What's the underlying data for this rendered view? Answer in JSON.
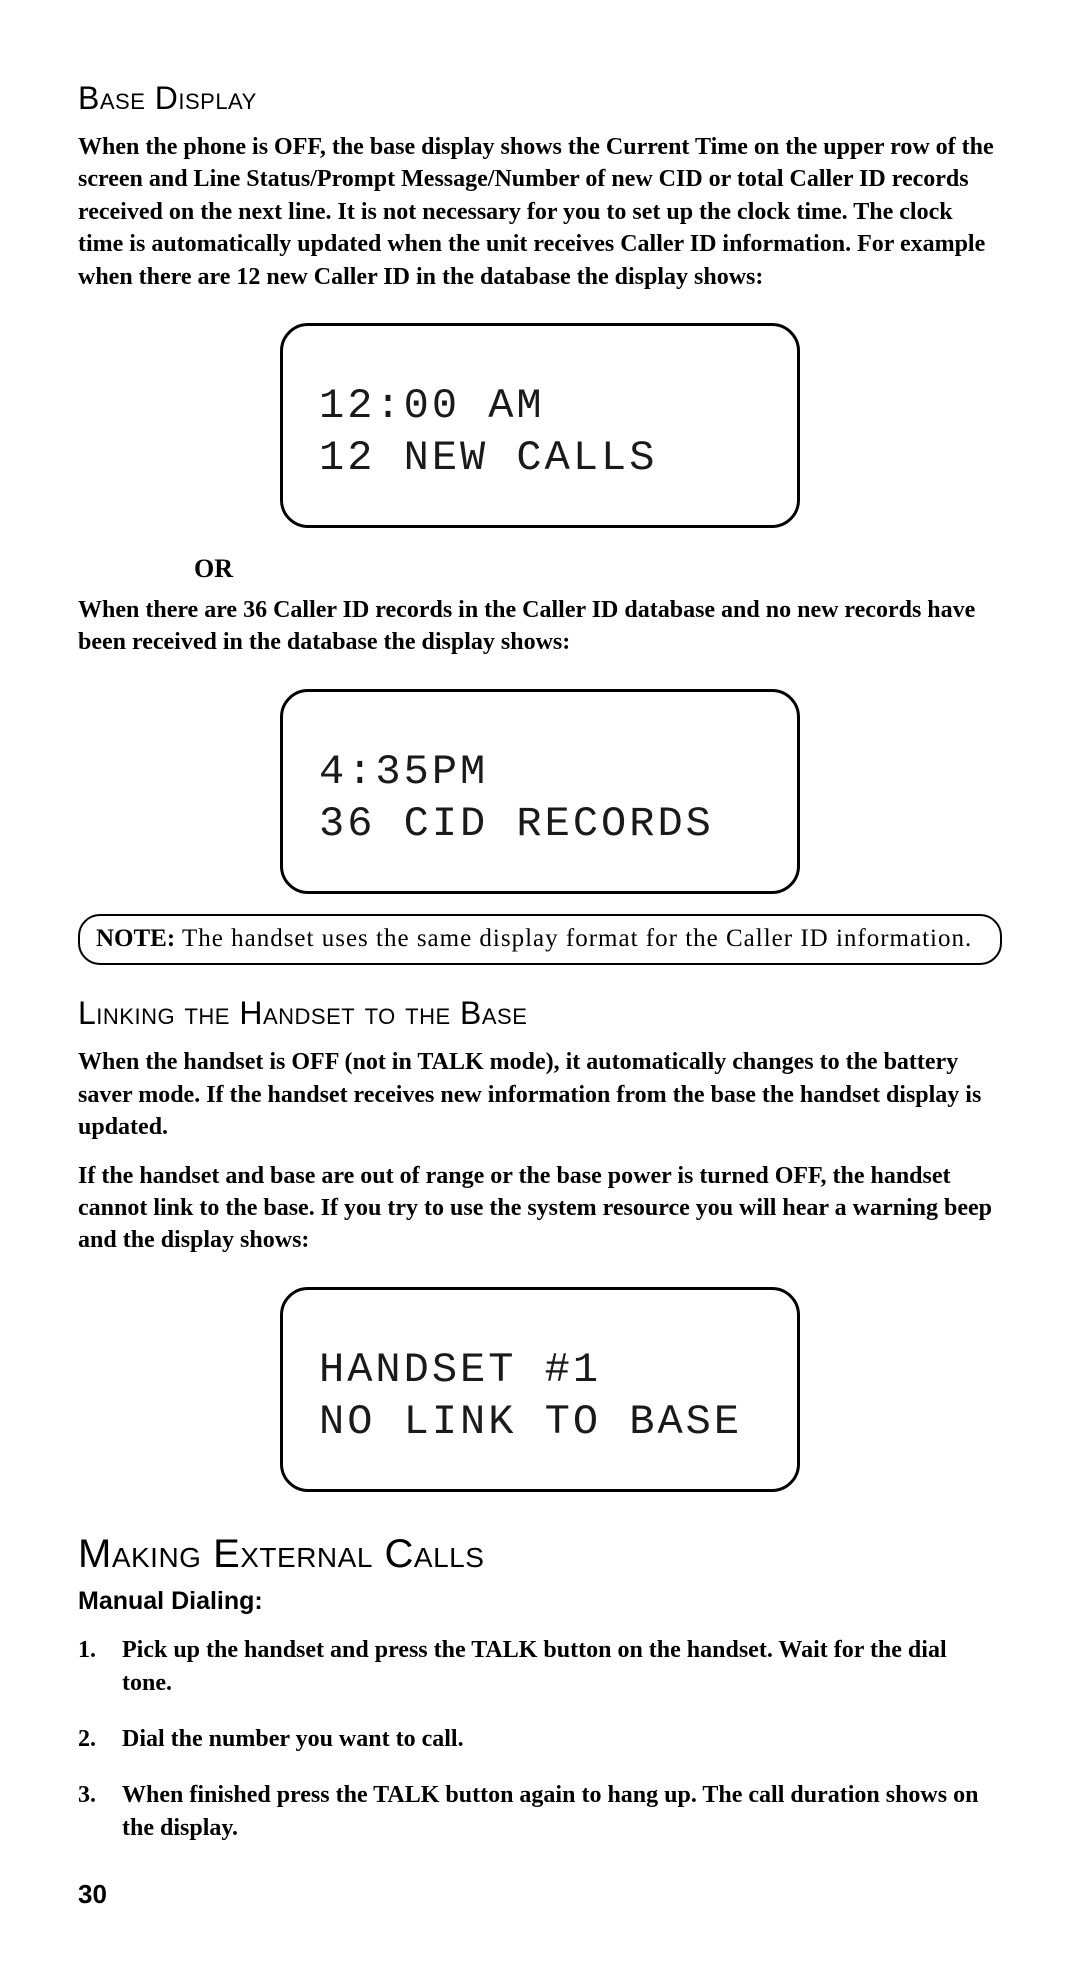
{
  "section1": {
    "heading": "Base Display",
    "para1": "When the phone is OFF, the base display shows the Current Time on the upper row of the screen and Line Status/Prompt Message/Number of new CID or total Caller ID records received on the next line. It is not necessary for you to set up the clock time. The clock time is automatically updated when the unit receives Caller ID information. For example when there are 12 new Caller ID in the database the display shows:",
    "lcd1_line1": "12:00 AM",
    "lcd1_line2": "12 NEW CALLS",
    "or_label": "OR",
    "para2": "When there are 36 Caller ID records in the Caller ID database and no new records have been received in the database the display shows:",
    "lcd2_line1": "4:35PM",
    "lcd2_line2": "36 CID RECORDS",
    "note_label": "NOTE:",
    "note_text": " The handset uses the same display format for the Caller ID information."
  },
  "section2": {
    "heading": "Linking the Handset to the Base",
    "para1": "When the handset is OFF (not in TALK mode), it automatically changes to the battery saver mode. If the handset receives new information from the base the handset display is updated.",
    "para2": "If the handset and base are out of range or the base power is turned OFF, the handset cannot link to the base. If you try to use the system resource you will hear a warning beep and the display shows:",
    "lcd3_line1": "HANDSET #1",
    "lcd3_line2": "NO LINK TO BASE"
  },
  "section3": {
    "heading": "Making External Calls",
    "manual_dialing": "Manual Dialing:",
    "step1": "Pick up the handset and press the TALK button on the handset. Wait for the dial tone.",
    "step2": "Dial the number you want to call.",
    "step3": "When finished press the TALK button again to hang up. The call duration shows on the display."
  },
  "page_number": "30"
}
